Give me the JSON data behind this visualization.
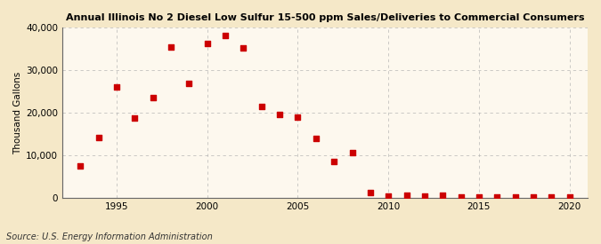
{
  "title": "Annual Illinois No 2 Diesel Low Sulfur 15-500 ppm Sales/Deliveries to Commercial Consumers",
  "ylabel": "Thousand Gallons",
  "source": "Source: U.S. Energy Information Administration",
  "background_color": "#f5e8c8",
  "plot_background_color": "#fdf8ee",
  "grid_color": "#aaaaaa",
  "marker_color": "#cc0000",
  "xlim": [
    1992,
    2021
  ],
  "ylim": [
    0,
    40000
  ],
  "yticks": [
    0,
    10000,
    20000,
    30000,
    40000
  ],
  "xticks": [
    1995,
    2000,
    2005,
    2010,
    2015,
    2020
  ],
  "data": {
    "years": [
      1993,
      1994,
      1995,
      1996,
      1997,
      1998,
      1999,
      2000,
      2001,
      2002,
      2003,
      2004,
      2005,
      2006,
      2007,
      2008,
      2009,
      2010,
      2011,
      2012,
      2013,
      2014,
      2015,
      2016,
      2017,
      2018,
      2019,
      2020
    ],
    "values": [
      7500,
      14200,
      26000,
      18800,
      23500,
      35500,
      27000,
      36300,
      38200,
      35200,
      21600,
      19700,
      19000,
      13900,
      8500,
      10700,
      1300,
      400,
      600,
      500,
      700,
      300,
      150,
      150,
      150,
      150,
      150,
      150
    ]
  }
}
